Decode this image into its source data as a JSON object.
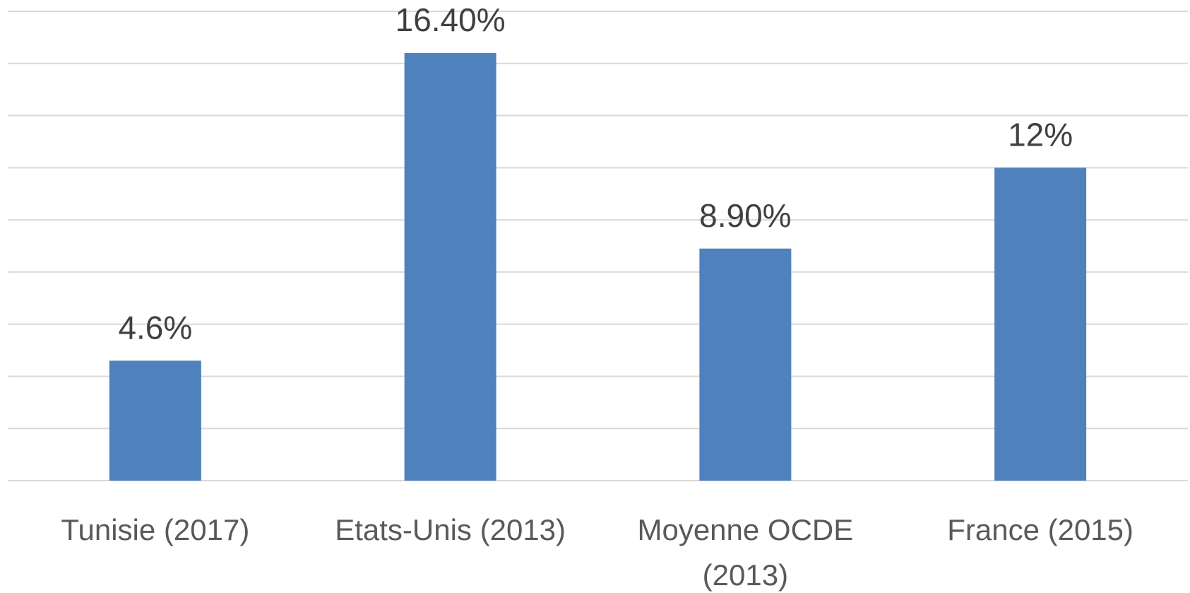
{
  "chart_data": {
    "type": "bar",
    "categories": [
      "Tunisie (2017)",
      "Etats-Unis (2013)",
      "Moyenne OCDE (2013)",
      "France (2015)"
    ],
    "values": [
      4.6,
      16.4,
      8.9,
      12
    ],
    "value_labels": [
      "4.6%",
      "16.40%",
      "8.90%",
      "12%"
    ],
    "color": "#4f81bd",
    "ylim": [
      0,
      18
    ],
    "yticks": [
      0,
      2,
      4,
      6,
      8,
      10,
      12,
      14,
      16,
      18
    ],
    "grid": true
  }
}
